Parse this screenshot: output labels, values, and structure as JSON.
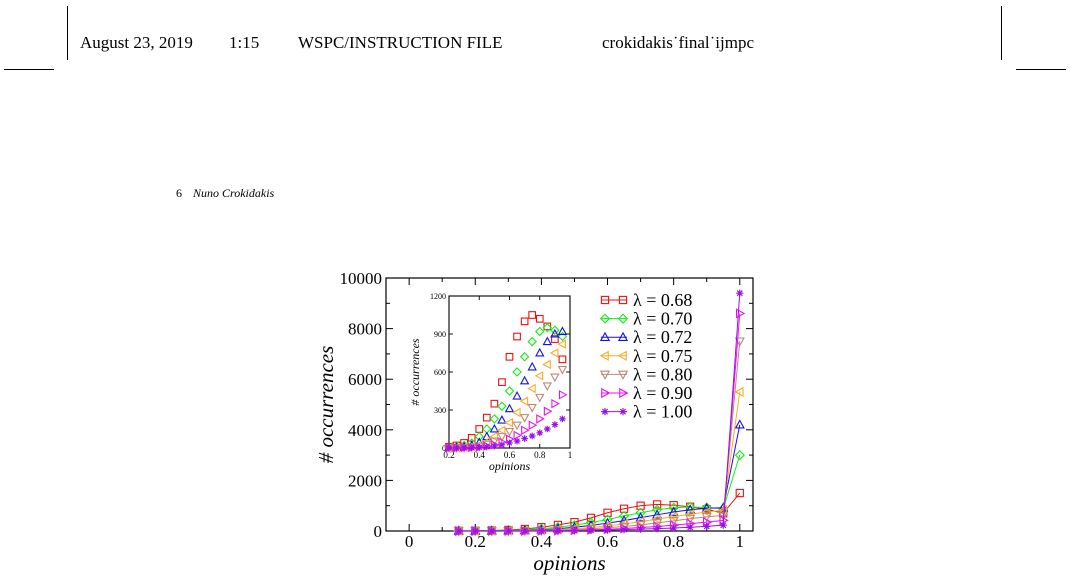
{
  "header": {
    "date": "August 23, 2019",
    "time": "1:15",
    "publisher": "WSPC/INSTRUCTION FILE",
    "filename": "crokidakis˙final˙ijmpc"
  },
  "running_head": {
    "page_number": "6",
    "author": "Nuno Crokidakis"
  },
  "chart_data": [
    {
      "type": "line",
      "xlabel": "opinions",
      "ylabel": "# occurrences",
      "xlim": [
        -0.07,
        1.04
      ],
      "ylim": [
        0,
        10000
      ],
      "xticks": [
        0,
        0.2,
        0.4,
        0.6,
        0.8,
        1
      ],
      "yticks": [
        0,
        2000,
        4000,
        6000,
        8000,
        10000
      ],
      "x": [
        0.15,
        0.2,
        0.25,
        0.3,
        0.35,
        0.4,
        0.45,
        0.5,
        0.55,
        0.6,
        0.65,
        0.7,
        0.75,
        0.8,
        0.85,
        0.9,
        0.95,
        1.0
      ],
      "series": [
        {
          "name": "λ = 0.68",
          "color": "#ee1111",
          "marker": "square",
          "values": [
            5,
            10,
            20,
            40,
            80,
            150,
            240,
            350,
            520,
            720,
            880,
            1000,
            1050,
            1020,
            960,
            860,
            700,
            1500
          ]
        },
        {
          "name": "λ = 0.70",
          "color": "#11ee11",
          "marker": "diamond",
          "values": [
            2,
            5,
            10,
            20,
            40,
            90,
            150,
            230,
            330,
            450,
            600,
            720,
            840,
            920,
            950,
            930,
            880,
            3000
          ]
        },
        {
          "name": "λ = 0.72",
          "color": "#1111ee",
          "marker": "triangle-up",
          "values": [
            1,
            2,
            5,
            10,
            20,
            45,
            90,
            150,
            220,
            310,
            410,
            530,
            640,
            750,
            840,
            900,
            920,
            4200
          ]
        },
        {
          "name": "λ = 0.75",
          "color": "#ffaa22",
          "marker": "triangle-left",
          "values": [
            1,
            2,
            3,
            6,
            12,
            25,
            50,
            90,
            140,
            200,
            280,
            370,
            470,
            570,
            660,
            750,
            820,
            5500
          ]
        },
        {
          "name": "λ = 0.80",
          "color": "#bb8877",
          "marker": "triangle-down",
          "values": [
            0,
            1,
            2,
            4,
            8,
            15,
            30,
            55,
            90,
            130,
            180,
            240,
            320,
            400,
            490,
            560,
            620,
            7500
          ]
        },
        {
          "name": "λ = 0.90",
          "color": "#ee11ee",
          "marker": "triangle-right",
          "values": [
            0,
            0,
            1,
            2,
            4,
            8,
            15,
            25,
            45,
            70,
            100,
            140,
            180,
            230,
            290,
            350,
            420,
            8600
          ]
        },
        {
          "name": "λ = 1.00",
          "color": "#9911ee",
          "marker": "star",
          "values": [
            0,
            0,
            0,
            1,
            2,
            4,
            8,
            15,
            25,
            40,
            55,
            75,
            95,
            120,
            150,
            185,
            230,
            9400
          ]
        }
      ]
    },
    {
      "type": "scatter",
      "role": "inset",
      "xlabel": "opinions",
      "ylabel": "# occurrences",
      "xlim": [
        0.2,
        1.0
      ],
      "ylim": [
        0,
        1200
      ],
      "xticks": [
        0.2,
        0.4,
        0.6,
        0.8,
        1
      ],
      "yticks": [
        0,
        300,
        600,
        900,
        1200
      ],
      "x": [
        0.15,
        0.2,
        0.25,
        0.3,
        0.35,
        0.4,
        0.45,
        0.5,
        0.55,
        0.6,
        0.65,
        0.7,
        0.75,
        0.8,
        0.85,
        0.9,
        0.95
      ],
      "series_from_main": true
    }
  ]
}
